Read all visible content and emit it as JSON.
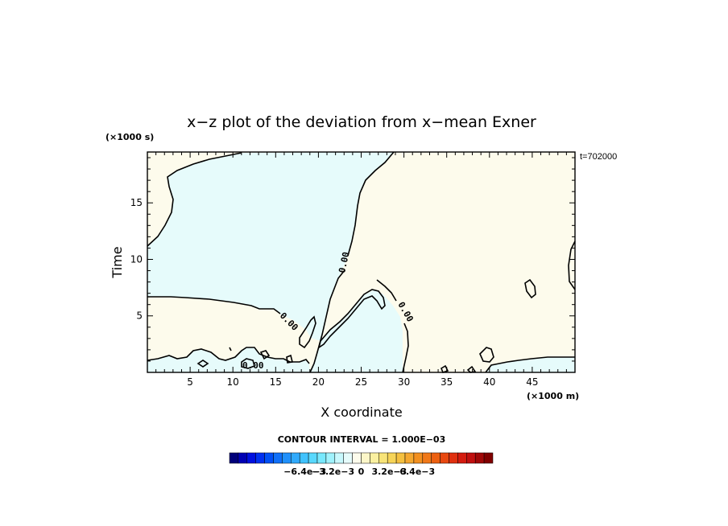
{
  "chart_data": {
    "type": "contour",
    "title": "x−z plot of the deviation from x−mean Exner",
    "xlabel": "X coordinate",
    "ylabel": "Time",
    "x_unit": "(×1000 m)",
    "y_unit": "(×1000 s)",
    "time_stamp": "t=702000",
    "xlim": [
      0,
      50
    ],
    "ylim": [
      0,
      19.5
    ],
    "x_ticks": [
      5,
      10,
      15,
      20,
      25,
      30,
      35,
      40,
      45
    ],
    "y_ticks": [
      5,
      10,
      15
    ],
    "contour_interval_text": "CONTOUR INTERVAL = 1.000E−03",
    "contour_labels": [
      "0.00",
      "0.00",
      "0.00",
      "0.00"
    ],
    "colors": {
      "positive_fill": "#fdfbec",
      "negative_fill": "#e6fbfb",
      "contour_line": "#000000"
    },
    "colorbar": {
      "tick_labels": [
        "−6.4e−3",
        "−3.2e−3",
        "0",
        "3.2e−3",
        "6.4e−3"
      ],
      "tick_values": [
        -0.0064,
        -0.0032,
        0,
        0.0032,
        0.0064
      ],
      "colors": [
        "#00007a",
        "#0000b4",
        "#0010e0",
        "#0030f0",
        "#0050f5",
        "#1070f8",
        "#2090fa",
        "#30aafc",
        "#40c2fd",
        "#58d8fd",
        "#78e8fd",
        "#a0f2fd",
        "#c8f8fd",
        "#e6fbfb",
        "#fdfbec",
        "#fcf6c8",
        "#faf0a0",
        "#f8e478",
        "#f6d458",
        "#f4c040",
        "#f4a830",
        "#f29020",
        "#f07818",
        "#ec6010",
        "#e84810",
        "#e03010",
        "#d41c10",
        "#c01010",
        "#a00808",
        "#800000"
      ]
    }
  }
}
